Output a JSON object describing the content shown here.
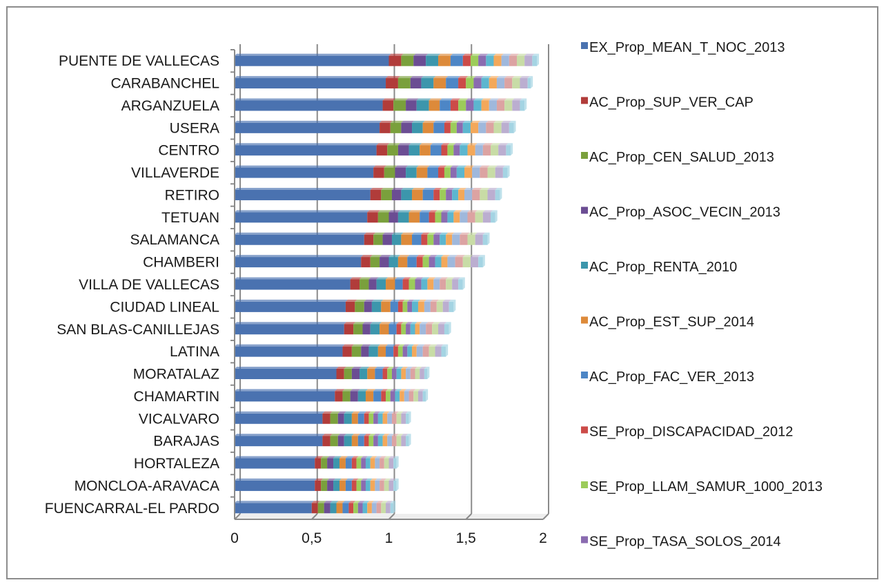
{
  "chart_data": {
    "type": "bar",
    "orientation": "horizontal",
    "stacked": true,
    "title": "",
    "xlabel": "",
    "ylabel": "",
    "xlim": [
      0,
      2
    ],
    "xticks": [
      "0",
      "0,5",
      "1",
      "1,5",
      "2"
    ],
    "grid": true,
    "legend_position": "right",
    "categories": [
      "PUENTE DE VALLECAS",
      "CARABANCHEL",
      "ARGANZUELA",
      "USERA",
      "CENTRO",
      "VILLAVERDE",
      "RETIRO",
      "TETUAN",
      "SALAMANCA",
      "CHAMBERI",
      "VILLA DE VALLECAS",
      "CIUDAD LINEAL",
      "SAN BLAS-CANILLEJAS",
      "LATINA",
      "MORATALAZ",
      "CHAMARTIN",
      "VICALVARO",
      "BARAJAS",
      "HORTALEZA",
      "MONCLOA-ARAVACA",
      "FUENCARRAL-EL PARDO"
    ],
    "series": [
      {
        "name": "EX_Prop_MEAN_T_NOC_2013",
        "color": "#4a72b0",
        "values": [
          1.0,
          0.98,
          0.96,
          0.94,
          0.92,
          0.9,
          0.88,
          0.86,
          0.84,
          0.82,
          0.75,
          0.72,
          0.71,
          0.7,
          0.66,
          0.65,
          0.57,
          0.57,
          0.52,
          0.52,
          0.5
        ]
      },
      {
        "name": "AC_Prop_SUP_VER_CAP",
        "color": "#b13c3a",
        "values": [
          0.08,
          0.08,
          0.07,
          0.07,
          0.07,
          0.07,
          0.07,
          0.07,
          0.06,
          0.06,
          0.06,
          0.06,
          0.06,
          0.06,
          0.05,
          0.05,
          0.05,
          0.05,
          0.04,
          0.04,
          0.04
        ]
      },
      {
        "name": "AC_Prop_CEN_SALUD_2013",
        "color": "#7aa03c",
        "values": [
          0.08,
          0.08,
          0.08,
          0.07,
          0.07,
          0.07,
          0.07,
          0.07,
          0.06,
          0.06,
          0.06,
          0.06,
          0.06,
          0.06,
          0.05,
          0.05,
          0.05,
          0.05,
          0.04,
          0.04,
          0.04
        ]
      },
      {
        "name": "AC_Prop_ASOC_VECIN_2013",
        "color": "#6b4d93",
        "values": [
          0.08,
          0.07,
          0.07,
          0.07,
          0.07,
          0.07,
          0.06,
          0.06,
          0.06,
          0.06,
          0.05,
          0.05,
          0.05,
          0.05,
          0.05,
          0.05,
          0.04,
          0.04,
          0.04,
          0.04,
          0.04
        ]
      },
      {
        "name": "AC_Prop_RENTA_2010",
        "color": "#3c96ac",
        "values": [
          0.08,
          0.08,
          0.08,
          0.07,
          0.07,
          0.07,
          0.07,
          0.07,
          0.06,
          0.06,
          0.06,
          0.06,
          0.06,
          0.06,
          0.05,
          0.05,
          0.05,
          0.05,
          0.04,
          0.04,
          0.04
        ]
      },
      {
        "name": "AC_Prop_EST_SUP_2014",
        "color": "#dd8a3a",
        "values": [
          0.08,
          0.08,
          0.07,
          0.07,
          0.07,
          0.07,
          0.07,
          0.07,
          0.07,
          0.06,
          0.06,
          0.06,
          0.06,
          0.05,
          0.05,
          0.05,
          0.04,
          0.04,
          0.04,
          0.04,
          0.04
        ]
      },
      {
        "name": "AC_Prop_FAC_VER_2013",
        "color": "#4d86c6",
        "values": [
          0.08,
          0.08,
          0.07,
          0.07,
          0.07,
          0.07,
          0.07,
          0.06,
          0.06,
          0.06,
          0.05,
          0.05,
          0.05,
          0.05,
          0.05,
          0.05,
          0.04,
          0.04,
          0.04,
          0.04,
          0.04
        ]
      },
      {
        "name": "SE_Prop_DISCAPACIDAD_2012",
        "color": "#cc4b48",
        "values": [
          0.05,
          0.05,
          0.05,
          0.04,
          0.04,
          0.04,
          0.04,
          0.04,
          0.04,
          0.04,
          0.04,
          0.03,
          0.03,
          0.03,
          0.03,
          0.03,
          0.03,
          0.03,
          0.03,
          0.03,
          0.03
        ]
      },
      {
        "name": "SE_Prop_LLAM_SAMUR_1000_2013",
        "color": "#9ccc5a",
        "values": [
          0.05,
          0.05,
          0.05,
          0.04,
          0.04,
          0.04,
          0.04,
          0.04,
          0.04,
          0.04,
          0.04,
          0.03,
          0.03,
          0.03,
          0.03,
          0.03,
          0.03,
          0.03,
          0.03,
          0.03,
          0.03
        ]
      },
      {
        "name": "SE_Prop_TASA_SOLOS_2014",
        "color": "#8a6bb0",
        "values": [
          0.05,
          0.05,
          0.05,
          0.04,
          0.04,
          0.04,
          0.04,
          0.04,
          0.04,
          0.04,
          0.04,
          0.03,
          0.03,
          0.03,
          0.03,
          0.03,
          0.03,
          0.03,
          0.03,
          0.03,
          0.03
        ]
      },
      {
        "values": [
          0.05,
          0.05,
          0.05,
          0.05,
          0.05,
          0.05,
          0.04,
          0.04,
          0.04,
          0.04,
          0.04,
          0.04,
          0.03,
          0.03,
          0.03,
          0.03,
          0.03,
          0.03,
          0.03,
          0.03,
          0.03
        ],
        "color": "#5cb6cf"
      },
      {
        "values": [
          0.05,
          0.05,
          0.05,
          0.05,
          0.05,
          0.05,
          0.04,
          0.04,
          0.04,
          0.04,
          0.04,
          0.04,
          0.03,
          0.03,
          0.03,
          0.03,
          0.03,
          0.03,
          0.03,
          0.03,
          0.03
        ],
        "color": "#f3a85a"
      },
      {
        "values": [
          0.05,
          0.05,
          0.05,
          0.05,
          0.05,
          0.05,
          0.05,
          0.05,
          0.05,
          0.05,
          0.04,
          0.04,
          0.04,
          0.04,
          0.03,
          0.03,
          0.03,
          0.03,
          0.03,
          0.03,
          0.03
        ],
        "color": "#9fb8dc"
      },
      {
        "values": [
          0.05,
          0.05,
          0.05,
          0.05,
          0.05,
          0.05,
          0.05,
          0.05,
          0.05,
          0.05,
          0.04,
          0.04,
          0.04,
          0.04,
          0.03,
          0.03,
          0.03,
          0.03,
          0.03,
          0.03,
          0.03
        ],
        "color": "#dca3a2"
      },
      {
        "values": [
          0.05,
          0.05,
          0.05,
          0.05,
          0.05,
          0.05,
          0.05,
          0.05,
          0.05,
          0.05,
          0.04,
          0.04,
          0.04,
          0.04,
          0.03,
          0.03,
          0.03,
          0.03,
          0.03,
          0.03,
          0.03
        ],
        "color": "#c8dca6"
      },
      {
        "values": [
          0.05,
          0.05,
          0.05,
          0.05,
          0.05,
          0.05,
          0.05,
          0.05,
          0.05,
          0.05,
          0.04,
          0.04,
          0.04,
          0.04,
          0.03,
          0.03,
          0.03,
          0.03,
          0.03,
          0.03,
          0.03
        ],
        "color": "#bbaed0"
      },
      {
        "values": [
          0.03,
          0.02,
          0.03,
          0.03,
          0.03,
          0.03,
          0.03,
          0.03,
          0.03,
          0.03,
          0.03,
          0.03,
          0.03,
          0.03,
          0.02,
          0.02,
          0.02,
          0.02,
          0.02,
          0.02,
          0.02
        ],
        "color": "#a4d4e3"
      }
    ]
  }
}
